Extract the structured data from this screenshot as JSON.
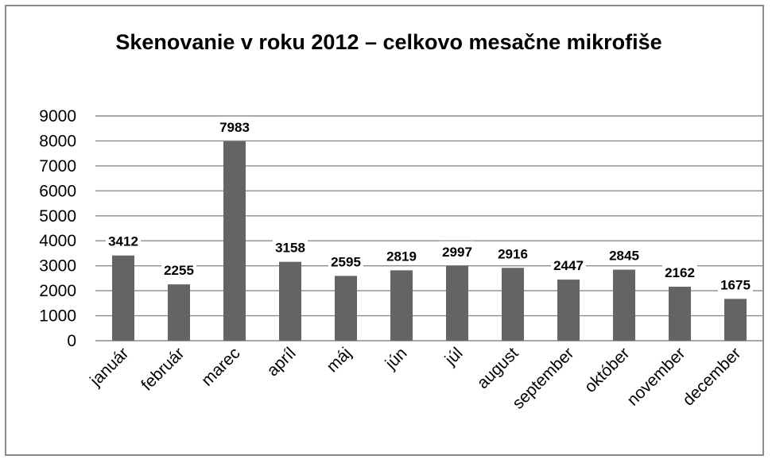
{
  "chart_data": {
    "type": "bar",
    "title": "Skenovanie v roku 2012 – celkovo mesačne mikrofiše",
    "xlabel": "",
    "ylabel": "",
    "categories": [
      "január",
      "február",
      "marec",
      "apríl",
      "máj",
      "jún",
      "júl",
      "august",
      "september",
      "október",
      "november",
      "december"
    ],
    "values": [
      3412,
      2255,
      7983,
      3158,
      2595,
      2819,
      2997,
      2916,
      2447,
      2845,
      2162,
      1675
    ],
    "ylim": [
      0,
      9000
    ],
    "yticks": [
      0,
      1000,
      2000,
      3000,
      4000,
      5000,
      6000,
      7000,
      8000,
      9000
    ],
    "grid": true,
    "legend": "none",
    "data_labels": true,
    "bar_color": "#646464"
  }
}
